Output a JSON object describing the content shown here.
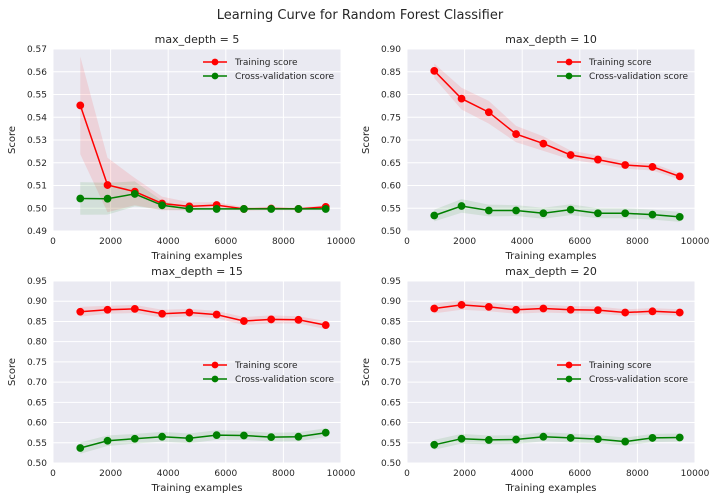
{
  "figure": {
    "title": "Learning Curve for Random Forest Classifier"
  },
  "colors": {
    "training": "#ff0000",
    "cv": "#008000",
    "plot_bg": "#eaeaf2",
    "grid": "#ffffff",
    "text": "#262626"
  },
  "chart_data": [
    {
      "type": "line",
      "title": "max_depth = 5",
      "xlabel": "Training examples",
      "ylabel": "Score",
      "xlim": [
        0,
        10000
      ],
      "ylim": [
        0.49,
        0.57
      ],
      "xticks": [
        0,
        2000,
        4000,
        6000,
        8000,
        10000
      ],
      "yticks": [
        "0.49",
        "0.50",
        "0.51",
        "0.52",
        "0.53",
        "0.54",
        "0.55",
        "0.56",
        "0.57"
      ],
      "legend_position": "top-right",
      "x": [
        947,
        1894,
        2841,
        3788,
        4735,
        5682,
        6629,
        7576,
        8523,
        9470
      ],
      "series": [
        {
          "name": "Training score",
          "values": [
            0.5452,
            0.5102,
            0.5073,
            0.5021,
            0.5008,
            0.5014,
            0.4997,
            0.4999,
            0.4997,
            0.5006
          ],
          "band": [
            0.0215,
            0.012,
            0.006,
            0.003,
            0.0018,
            0.0013,
            0.0008,
            0.0007,
            0.0006,
            0.0007
          ]
        },
        {
          "name": "Cross-validation score",
          "values": [
            0.5043,
            0.5042,
            0.5063,
            0.5013,
            0.4997,
            0.4997,
            0.4997,
            0.4997,
            0.4997,
            0.4997
          ],
          "band": [
            0.0072,
            0.007,
            0.0055,
            0.002,
            0.0005,
            0.0005,
            0.0005,
            0.0005,
            0.0005,
            0.0005
          ]
        }
      ]
    },
    {
      "type": "line",
      "title": "max_depth = 10",
      "xlabel": "Training examples",
      "ylabel": "Score",
      "xlim": [
        0,
        10000
      ],
      "ylim": [
        0.5,
        0.9
      ],
      "xticks": [
        0,
        2000,
        4000,
        6000,
        8000,
        10000
      ],
      "yticks": [
        "0.50",
        "0.55",
        "0.60",
        "0.65",
        "0.70",
        "0.75",
        "0.80",
        "0.85",
        "0.90"
      ],
      "legend_position": "top-right",
      "x": [
        947,
        1894,
        2841,
        3788,
        4735,
        5682,
        6629,
        7576,
        8523,
        9470
      ],
      "series": [
        {
          "name": "Training score",
          "values": [
            0.852,
            0.791,
            0.761,
            0.713,
            0.692,
            0.667,
            0.657,
            0.645,
            0.641,
            0.62
          ],
          "band": [
            0.016,
            0.024,
            0.025,
            0.018,
            0.016,
            0.01,
            0.009,
            0.008,
            0.008,
            0.007
          ]
        },
        {
          "name": "Cross-validation score",
          "values": [
            0.534,
            0.555,
            0.545,
            0.545,
            0.539,
            0.547,
            0.539,
            0.539,
            0.536,
            0.531
          ],
          "band": [
            0.013,
            0.015,
            0.013,
            0.012,
            0.012,
            0.012,
            0.011,
            0.011,
            0.011,
            0.011
          ]
        }
      ]
    },
    {
      "type": "line",
      "title": "max_depth = 15",
      "xlabel": "Training examples",
      "ylabel": "Score",
      "xlim": [
        0,
        10000
      ],
      "ylim": [
        0.5,
        0.95
      ],
      "xticks": [
        0,
        2000,
        4000,
        6000,
        8000,
        10000
      ],
      "yticks": [
        "0.50",
        "0.55",
        "0.60",
        "0.65",
        "0.70",
        "0.75",
        "0.80",
        "0.85",
        "0.90",
        "0.95"
      ],
      "legend_position": "center-right",
      "x": [
        947,
        1894,
        2841,
        3788,
        4735,
        5682,
        6629,
        7576,
        8523,
        9470
      ],
      "series": [
        {
          "name": "Training score",
          "values": [
            0.874,
            0.879,
            0.881,
            0.869,
            0.872,
            0.867,
            0.851,
            0.855,
            0.854,
            0.841
          ],
          "band": [
            0.012,
            0.01,
            0.01,
            0.01,
            0.009,
            0.009,
            0.01,
            0.01,
            0.009,
            0.01
          ]
        },
        {
          "name": "Cross-validation score",
          "values": [
            0.537,
            0.555,
            0.56,
            0.565,
            0.561,
            0.569,
            0.568,
            0.564,
            0.565,
            0.575
          ],
          "band": [
            0.014,
            0.013,
            0.012,
            0.012,
            0.012,
            0.012,
            0.011,
            0.011,
            0.011,
            0.011
          ]
        }
      ]
    },
    {
      "type": "line",
      "title": "max_depth = 20",
      "xlabel": "Training examples",
      "ylabel": "Score",
      "xlim": [
        0,
        10000
      ],
      "ylim": [
        0.5,
        0.95
      ],
      "xticks": [
        0,
        2000,
        4000,
        6000,
        8000,
        10000
      ],
      "yticks": [
        "0.50",
        "0.55",
        "0.60",
        "0.65",
        "0.70",
        "0.75",
        "0.80",
        "0.85",
        "0.90",
        "0.95"
      ],
      "legend_position": "center-right",
      "x": [
        947,
        1894,
        2841,
        3788,
        4735,
        5682,
        6629,
        7576,
        8523,
        9470
      ],
      "series": [
        {
          "name": "Training score",
          "values": [
            0.882,
            0.891,
            0.886,
            0.879,
            0.882,
            0.879,
            0.878,
            0.872,
            0.875,
            0.872
          ],
          "band": [
            0.012,
            0.012,
            0.011,
            0.01,
            0.01,
            0.009,
            0.009,
            0.008,
            0.008,
            0.008
          ]
        },
        {
          "name": "Cross-validation score",
          "values": [
            0.545,
            0.56,
            0.557,
            0.558,
            0.565,
            0.562,
            0.559,
            0.553,
            0.562,
            0.563
          ],
          "band": [
            0.012,
            0.012,
            0.011,
            0.011,
            0.011,
            0.011,
            0.01,
            0.01,
            0.01,
            0.01
          ]
        }
      ]
    }
  ]
}
